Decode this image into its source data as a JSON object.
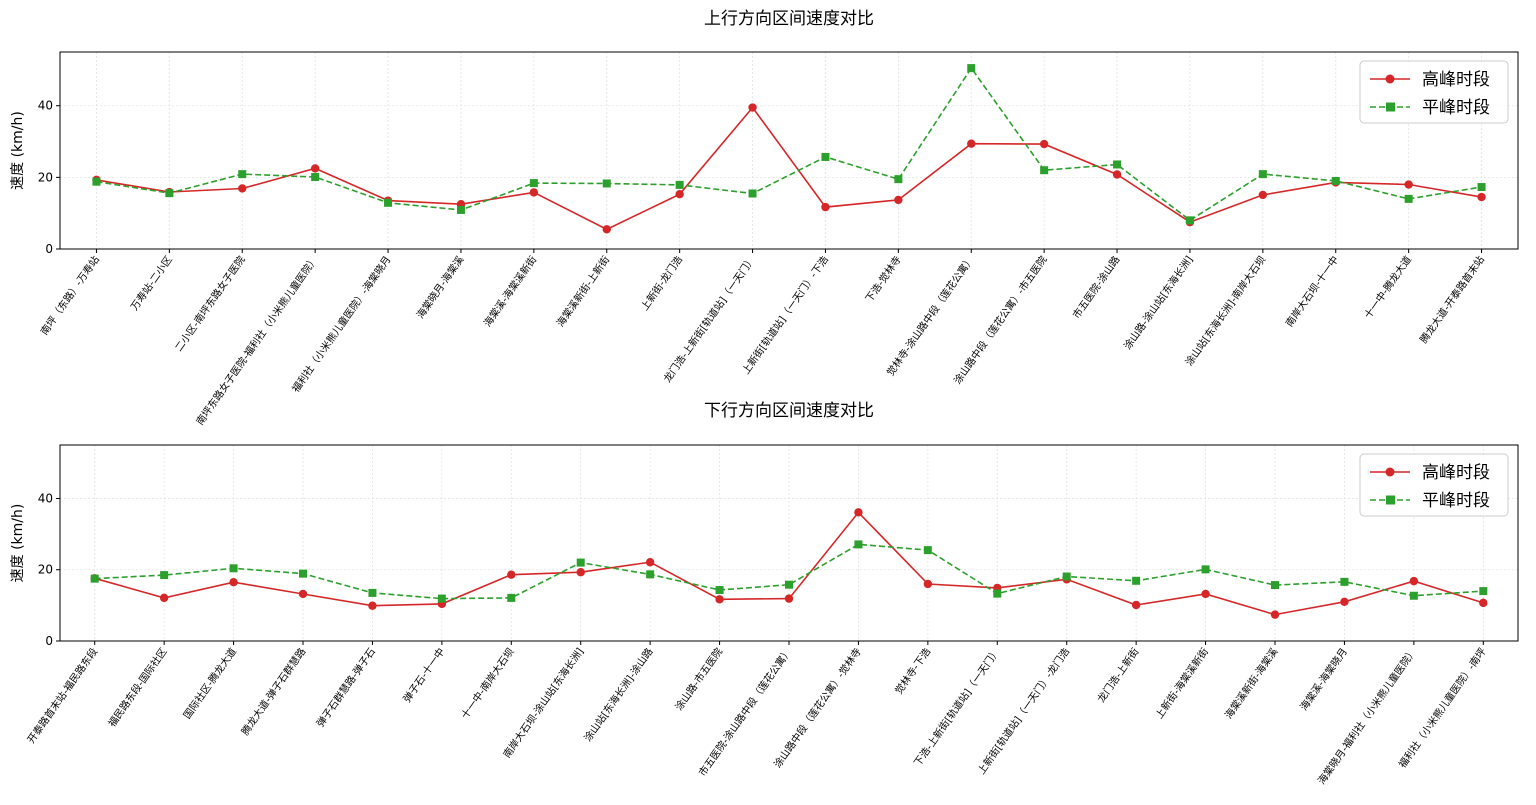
{
  "chart_data": [
    {
      "type": "line",
      "title": "上行方向区间速度对比",
      "ylabel": "速度 (km/h)",
      "xlabel": "",
      "ylim": [
        0,
        55
      ],
      "yticks": [
        0,
        20,
        40
      ],
      "grid": true,
      "legend_position": "top-right",
      "categories": [
        "南坪（东路）-万寿站",
        "万寿站-二小区",
        "二小区-南坪东路女子医院",
        "南坪东路女子医院-福利社（小米熊儿童医院）",
        "福利社（小米熊儿童医院）-海棠晓月",
        "海棠晓月-海棠溪",
        "海棠溪-海棠溪新街",
        "海棠溪新街-上新街",
        "上新街-龙门浩",
        "龙门浩-上新街[轨道站]（一天门）",
        "上新街[轨道站]（一天门）-下浩",
        "下浩-觉林寺",
        "觉林寺-涂山路中段（莲花公寓）",
        "涂山路中段（莲花公寓）-市五医院",
        "市五医院-涂山路",
        "涂山路-涂山站[东海长洲]",
        "涂山站[东海长洲]-南岸大石坝",
        "南岸大石坝-十一中",
        "十一中-腾龙大道",
        "腾龙大道-开泰路首末站"
      ],
      "series": [
        {
          "name": "高峰时段",
          "color": "#d62728",
          "marker": "circle",
          "dash": "solid",
          "values": [
            19.3,
            15.9,
            16.9,
            22.5,
            13.5,
            12.5,
            15.8,
            5.5,
            15.3,
            39.5,
            11.7,
            13.7,
            29.4,
            29.3,
            20.8,
            7.5,
            15.1,
            18.6,
            18.0,
            14.5
          ]
        },
        {
          "name": "平峰时段",
          "color": "#2ca02c",
          "marker": "square",
          "dash": "dashed",
          "values": [
            18.8,
            15.6,
            20.9,
            20.1,
            12.9,
            10.9,
            18.4,
            18.3,
            17.9,
            15.5,
            25.7,
            19.5,
            50.5,
            22.0,
            23.6,
            8.0,
            20.9,
            19.0,
            14.0,
            17.3
          ]
        }
      ]
    },
    {
      "type": "line",
      "title": "下行方向区间速度对比",
      "ylabel": "速度 (km/h)",
      "xlabel": "",
      "ylim": [
        0,
        55
      ],
      "yticks": [
        0,
        20,
        40
      ],
      "grid": true,
      "legend_position": "top-right",
      "categories": [
        "开泰路首末站-福民路东段",
        "福民路东段-国际社区",
        "国际社区-腾龙大道",
        "腾龙大道-弹子石群慧路",
        "弹子石群慧路-弹子石",
        "弹子石-十一中",
        "十一中-南岸大石坝",
        "南岸大石坝-涂山站[东海长洲]",
        "涂山站[东海长洲]-涂山路",
        "涂山路-市五医院",
        "市五医院-涂山路中段（莲花公寓）",
        "涂山路中段（莲花公寓）-觉林寺",
        "觉林寺-下浩",
        "下浩-上新街[轨道站]（一天门）",
        "上新街[轨道站]（一天门）-龙门浩",
        "龙门浩-上新街",
        "上新街-海棠溪新街",
        "海棠溪新街-海棠溪",
        "海棠溪-海棠晓月",
        "海棠晓月-福利社（小米熊儿童医院）",
        "福利社（小米熊儿童医院）-南坪"
      ],
      "series": [
        {
          "name": "高峰时段",
          "color": "#d62728",
          "marker": "circle",
          "dash": "solid",
          "values": [
            17.6,
            12.1,
            16.5,
            13.2,
            9.9,
            10.4,
            18.6,
            19.3,
            22.1,
            11.7,
            11.9,
            36.1,
            16.0,
            14.9,
            17.3,
            10.1,
            13.2,
            7.4,
            11.0,
            16.8,
            10.7
          ]
        },
        {
          "name": "平峰时段",
          "color": "#2ca02c",
          "marker": "square",
          "dash": "dashed",
          "values": [
            17.5,
            18.5,
            20.4,
            18.9,
            13.5,
            11.9,
            12.1,
            22.0,
            18.7,
            14.3,
            15.8,
            27.1,
            25.5,
            13.3,
            18.1,
            16.9,
            20.1,
            15.7,
            16.6,
            12.7,
            14.0
          ]
        }
      ]
    }
  ]
}
